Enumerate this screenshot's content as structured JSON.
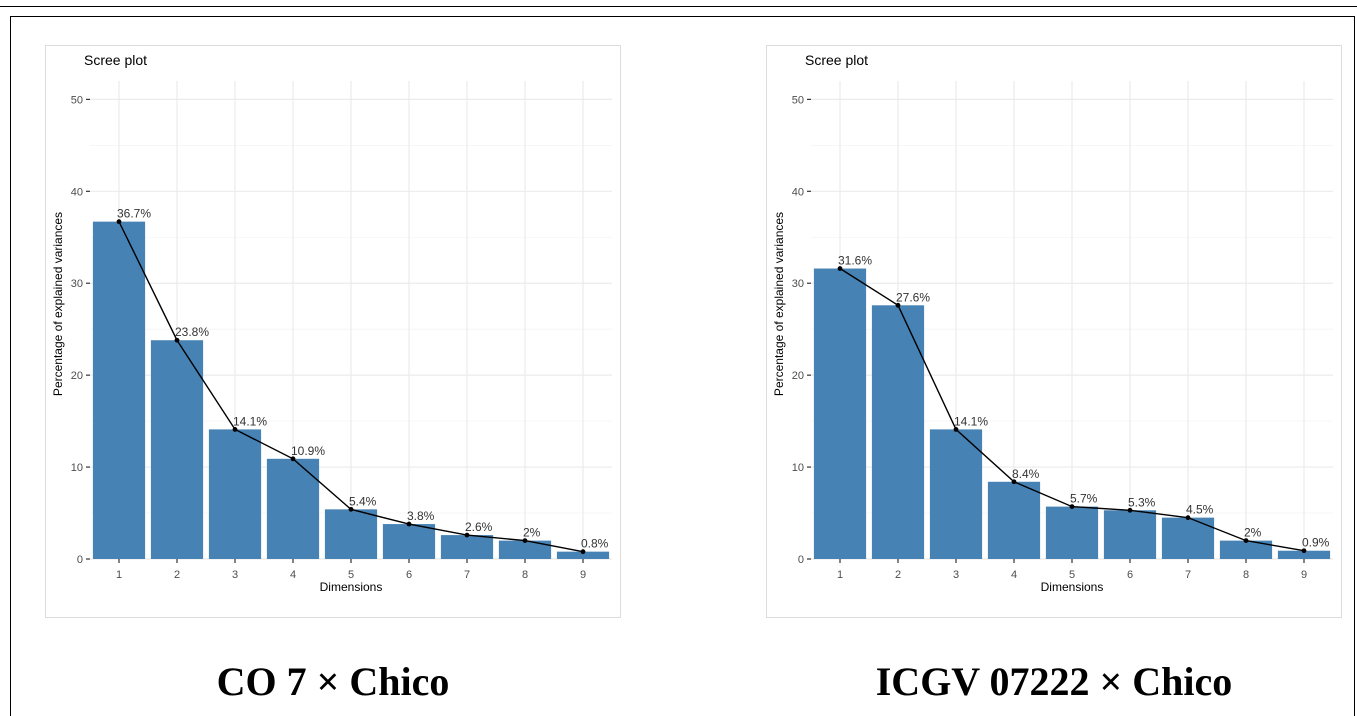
{
  "captions": {
    "left": "CO 7 × Chico",
    "right": "ICGV 07222 × Chico"
  },
  "colors": {
    "bar": "#4682b4",
    "line": "#000000",
    "grid": "#ebebeb"
  },
  "chart_data": [
    {
      "type": "bar",
      "title": "Scree plot",
      "xlabel": "Dimensions",
      "ylabel": "Percentage of explained variances",
      "categories": [
        "1",
        "2",
        "3",
        "4",
        "5",
        "6",
        "7",
        "8",
        "9"
      ],
      "values": [
        36.7,
        23.8,
        14.1,
        10.9,
        5.4,
        3.8,
        2.6,
        2,
        0.8
      ],
      "labels": [
        "36.7%",
        "23.8%",
        "14.1%",
        "10.9%",
        "5.4%",
        "3.8%",
        "2.6%",
        "2%",
        "0.8%"
      ],
      "yticks": [
        0,
        10,
        20,
        30,
        40,
        50
      ],
      "ylim": [
        0,
        52
      ],
      "line_overlay": true,
      "grid": true
    },
    {
      "type": "bar",
      "title": "Scree plot",
      "xlabel": "Dimensions",
      "ylabel": "Percentage of explained variances",
      "categories": [
        "1",
        "2",
        "3",
        "4",
        "5",
        "6",
        "7",
        "8",
        "9"
      ],
      "values": [
        31.6,
        27.6,
        14.1,
        8.4,
        5.7,
        5.3,
        4.5,
        2,
        0.9
      ],
      "labels": [
        "31.6%",
        "27.6%",
        "14.1%",
        "8.4%",
        "5.7%",
        "5.3%",
        "4.5%",
        "2%",
        "0.9%"
      ],
      "yticks": [
        0,
        10,
        20,
        30,
        40,
        50
      ],
      "ylim": [
        0,
        52
      ],
      "line_overlay": true,
      "grid": true
    }
  ]
}
